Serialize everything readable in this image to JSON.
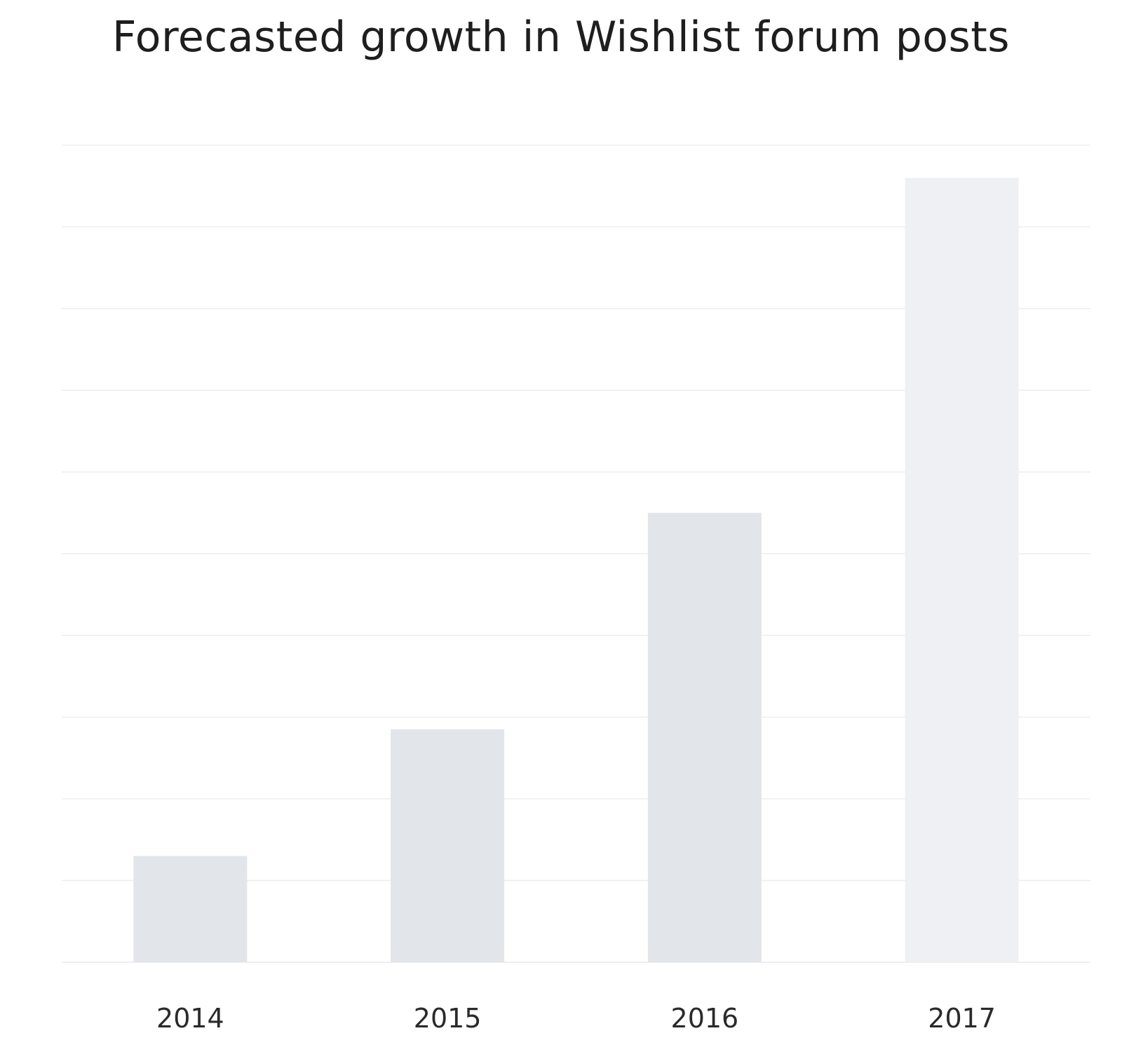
{
  "chart_data": {
    "type": "bar",
    "title": "Forecasted growth in Wishlist forum posts",
    "xlabel": "",
    "ylabel": "",
    "categories": [
      "2014",
      "2015",
      "2016",
      "2017"
    ],
    "values": [
      1.3,
      2.85,
      5.5,
      9.6
    ],
    "ylim": [
      0,
      10
    ],
    "y_tick_labels_shown": false,
    "grid": true,
    "legend": "none",
    "colors": {
      "bar": "#e2e5ea",
      "bar_last": "#eff0f4",
      "grid": "#eeeeee",
      "title": "#1e1e1e",
      "labels": "#2a2a2a"
    }
  }
}
